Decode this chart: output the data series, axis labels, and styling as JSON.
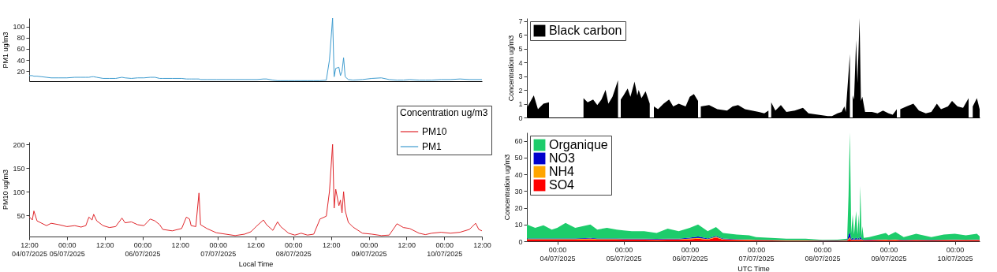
{
  "chart_data": [
    {
      "type": "line",
      "ylabel": "PM1 ug/m3",
      "xlim": [
        "2025-07-04T12:00",
        "2025-07-10T12:00"
      ],
      "ylim": [
        2,
        115
      ],
      "yticks": [
        20,
        40,
        60,
        80,
        100
      ],
      "tick_labels": "y",
      "x": [
        "2025-07-04T12:00",
        "2025-07-04T13:00",
        "2025-07-04T13:30",
        "2025-07-04T14:30",
        "2025-07-04T16:00",
        "2025-07-04T17:30",
        "2025-07-04T19:00",
        "2025-07-04T21:30",
        "2025-07-05T00:00",
        "2025-07-05T02:30",
        "2025-07-05T04:30",
        "2025-07-05T06:00",
        "2025-07-05T07:00",
        "2025-07-05T08:00",
        "2025-07-05T08:30",
        "2025-07-05T09:30",
        "2025-07-05T11:30",
        "2025-07-05T13:30",
        "2025-07-05T15:30",
        "2025-07-05T17:30",
        "2025-07-05T18:30",
        "2025-07-05T20:30",
        "2025-07-05T22:30",
        "2025-07-06T00:30",
        "2025-07-06T02:30",
        "2025-07-06T04:00",
        "2025-07-06T05:30",
        "2025-07-06T06:30",
        "2025-07-06T09:30",
        "2025-07-06T12:30",
        "2025-07-06T14:00",
        "2025-07-06T15:00",
        "2025-07-06T15:30",
        "2025-07-06T17:00",
        "2025-07-06T18:00",
        "2025-07-06T18:30",
        "2025-07-06T20:30",
        "2025-07-06T23:30",
        "2025-07-07T02:30",
        "2025-07-07T05:30",
        "2025-07-07T08:30",
        "2025-07-07T10:30",
        "2025-07-07T12:30",
        "2025-07-07T14:30",
        "2025-07-07T15:30",
        "2025-07-07T17:30",
        "2025-07-07T19:00",
        "2025-07-07T20:00",
        "2025-07-07T22:30",
        "2025-07-08T00:30",
        "2025-07-08T02:30",
        "2025-07-08T04:30",
        "2025-07-08T06:30",
        "2025-07-08T08:30",
        "2025-07-08T10:30",
        "2025-07-08T11:30",
        "2025-07-08T12:30",
        "2025-07-08T13:00",
        "2025-07-08T13:30",
        "2025-07-08T14:30",
        "2025-07-08T15:00",
        "2025-07-08T15:30",
        "2025-07-08T16:00",
        "2025-07-08T16:30",
        "2025-07-08T17:30",
        "2025-07-08T19:00",
        "2025-07-08T22:00",
        "2025-07-09T01:00",
        "2025-07-09T04:00",
        "2025-07-09T06:30",
        "2025-07-09T09:00",
        "2025-07-09T11:00",
        "2025-07-09T13:00",
        "2025-07-09T16:00",
        "2025-07-09T18:00",
        "2025-07-09T20:00",
        "2025-07-09T23:00",
        "2025-07-10T02:00",
        "2025-07-10T05:00",
        "2025-07-10T08:00",
        "2025-07-10T10:00",
        "2025-07-10T11:00",
        "2025-07-10T12:00"
      ],
      "series": [
        {
          "name": "PM1",
          "color": "#3f9ccf",
          "values": [
            12,
            12,
            11,
            11,
            10,
            9,
            8,
            8,
            8,
            9,
            9,
            9,
            9,
            10,
            10,
            9,
            7,
            7,
            7,
            9,
            8,
            7,
            8,
            8,
            9,
            9,
            7,
            7,
            7,
            7,
            6,
            6,
            6,
            6,
            6,
            5,
            5,
            5,
            5,
            5,
            5,
            5,
            5,
            6,
            6,
            4,
            3,
            3,
            3,
            3,
            3,
            3,
            3,
            3,
            4,
            40,
            115,
            10,
            25,
            27,
            12,
            20,
            44,
            10,
            5,
            4,
            5,
            7,
            8,
            5,
            4,
            4,
            5,
            4,
            4,
            4,
            5,
            5,
            6,
            5,
            5,
            5,
            5
          ]
        }
      ]
    },
    {
      "type": "line",
      "ylabel": "PM10 ug/m3",
      "xlabel": "Local Time",
      "legend_title": "Concentration ug/m3",
      "legend": "top right",
      "xlim": [
        "2025-07-04T12:00",
        "2025-07-10T12:00"
      ],
      "ylim": [
        5,
        205
      ],
      "yticks": [
        50,
        100,
        150,
        200
      ],
      "xticks": [
        {
          "value": "2025-07-04T12:00",
          "label": "12:00\n04/07/2025"
        },
        {
          "value": "2025-07-05T00:00",
          "label": "00:00\n05/07/2025"
        },
        {
          "value": "2025-07-05T12:00",
          "label": "12:00"
        },
        {
          "value": "2025-07-06T00:00",
          "label": "00:00\n06/07/2025"
        },
        {
          "value": "2025-07-06T12:00",
          "label": "12:00"
        },
        {
          "value": "2025-07-07T00:00",
          "label": "00:00\n07/07/2025"
        },
        {
          "value": "2025-07-07T12:00",
          "label": "12:00"
        },
        {
          "value": "2025-07-08T00:00",
          "label": "00:00\n08/07/2025"
        },
        {
          "value": "2025-07-08T12:00",
          "label": "12:00"
        },
        {
          "value": "2025-07-09T00:00",
          "label": "00:00\n09/07/2025"
        },
        {
          "value": "2025-07-09T12:00",
          "label": "12:00"
        },
        {
          "value": "2025-07-10T00:00",
          "label": "00:00\n10/07/2025"
        },
        {
          "value": "2025-07-10T12:00",
          "label": "12:00"
        }
      ],
      "x": [
        "2025-07-04T12:00",
        "2025-07-04T13:00",
        "2025-07-04T13:30",
        "2025-07-04T14:30",
        "2025-07-04T16:00",
        "2025-07-04T17:30",
        "2025-07-04T19:00",
        "2025-07-04T21:30",
        "2025-07-05T00:00",
        "2025-07-05T02:30",
        "2025-07-05T04:30",
        "2025-07-05T06:00",
        "2025-07-05T07:00",
        "2025-07-05T08:00",
        "2025-07-05T08:30",
        "2025-07-05T09:30",
        "2025-07-05T11:30",
        "2025-07-05T13:30",
        "2025-07-05T15:30",
        "2025-07-05T17:30",
        "2025-07-05T18:30",
        "2025-07-05T20:30",
        "2025-07-05T22:30",
        "2025-07-06T00:30",
        "2025-07-06T02:30",
        "2025-07-06T04:00",
        "2025-07-06T05:30",
        "2025-07-06T06:30",
        "2025-07-06T09:30",
        "2025-07-06T12:30",
        "2025-07-06T14:00",
        "2025-07-06T15:00",
        "2025-07-06T15:30",
        "2025-07-06T17:00",
        "2025-07-06T18:00",
        "2025-07-06T18:30",
        "2025-07-06T20:30",
        "2025-07-06T23:30",
        "2025-07-07T02:30",
        "2025-07-07T05:30",
        "2025-07-07T08:30",
        "2025-07-07T10:30",
        "2025-07-07T12:30",
        "2025-07-07T14:30",
        "2025-07-07T15:30",
        "2025-07-07T17:30",
        "2025-07-07T19:00",
        "2025-07-07T20:00",
        "2025-07-07T22:30",
        "2025-07-08T00:30",
        "2025-07-08T02:30",
        "2025-07-08T04:30",
        "2025-07-08T06:30",
        "2025-07-08T08:30",
        "2025-07-08T10:30",
        "2025-07-08T11:30",
        "2025-07-08T12:30",
        "2025-07-08T13:00",
        "2025-07-08T13:30",
        "2025-07-08T14:30",
        "2025-07-08T15:00",
        "2025-07-08T15:30",
        "2025-07-08T16:00",
        "2025-07-08T16:30",
        "2025-07-08T17:30",
        "2025-07-08T19:00",
        "2025-07-08T22:00",
        "2025-07-09T01:00",
        "2025-07-09T04:00",
        "2025-07-09T06:30",
        "2025-07-09T09:00",
        "2025-07-09T11:00",
        "2025-07-09T13:00",
        "2025-07-09T16:00",
        "2025-07-09T18:00",
        "2025-07-09T20:00",
        "2025-07-09T23:00",
        "2025-07-10T02:00",
        "2025-07-10T05:00",
        "2025-07-10T08:00",
        "2025-07-10T10:00",
        "2025-07-10T11:00",
        "2025-07-10T12:00"
      ],
      "series": [
        {
          "name": "PM10",
          "color": "#e0262b",
          "values": [
            47,
            40,
            59,
            38,
            33,
            28,
            33,
            30,
            26,
            28,
            25,
            28,
            46,
            40,
            52,
            38,
            28,
            24,
            26,
            44,
            34,
            36,
            30,
            28,
            42,
            38,
            30,
            20,
            17,
            22,
            46,
            42,
            28,
            26,
            97,
            30,
            22,
            13,
            10,
            7,
            10,
            15,
            28,
            40,
            30,
            18,
            36,
            26,
            12,
            8,
            12,
            8,
            10,
            42,
            48,
            100,
            200,
            65,
            105,
            70,
            82,
            55,
            100,
            60,
            35,
            25,
            12,
            10,
            7,
            8,
            32,
            24,
            22,
            12,
            9,
            12,
            14,
            12,
            14,
            20,
            33,
            20,
            17
          ]
        }
      ]
    },
    {
      "type": "area",
      "ylabel": "Concentration ug/m3",
      "legend": "top left",
      "xlim": [
        "2025-07-03T13:00",
        "2025-07-10T09:00"
      ],
      "ylim": [
        0,
        7.2
      ],
      "yticks": [
        0,
        1,
        2,
        3,
        4,
        5,
        6,
        7
      ],
      "tick_labels": "y",
      "x": [
        "2025-07-03T13:00",
        "2025-07-03T15:30",
        "2025-07-03T17:00",
        "2025-07-03T19:00",
        "2025-07-03T21:00",
        "2025-07-03T22:00",
        "2025-07-04T09:30",
        "2025-07-04T11:00",
        "2025-07-04T13:00",
        "2025-07-04T14:30",
        "2025-07-04T16:00",
        "2025-07-04T17:30",
        "2025-07-04T18:30",
        "2025-07-04T20:00",
        "2025-07-04T22:00",
        "2025-07-04T22:30",
        "2025-07-04T23:00",
        "2025-07-05T00:00",
        "2025-07-05T01:30",
        "2025-07-05T02:30",
        "2025-07-05T04:00",
        "2025-07-05T05:00",
        "2025-07-05T05:30",
        "2025-07-05T06:30",
        "2025-07-05T08:00",
        "2025-07-05T09:30",
        "2025-07-05T10:30",
        "2025-07-05T11:00",
        "2025-07-05T12:30",
        "2025-07-05T14:30",
        "2025-07-05T16:30",
        "2025-07-05T18:00",
        "2025-07-05T20:00",
        "2025-07-05T22:30",
        "2025-07-06T00:00",
        "2025-07-06T01:30",
        "2025-07-06T03:00",
        "2025-07-06T03:30",
        "2025-07-06T04:00",
        "2025-07-06T07:00",
        "2025-07-06T10:00",
        "2025-07-06T13:30",
        "2025-07-06T15:30",
        "2025-07-06T17:30",
        "2025-07-06T20:00",
        "2025-07-06T22:30",
        "2025-07-07T01:00",
        "2025-07-07T03:00",
        "2025-07-07T04:30",
        "2025-07-07T05:00",
        "2025-07-07T05:30",
        "2025-07-07T07:00",
        "2025-07-07T09:00",
        "2025-07-07T11:00",
        "2025-07-07T14:00",
        "2025-07-07T17:00",
        "2025-07-07T19:00",
        "2025-07-07T22:30",
        "2025-07-08T02:00",
        "2025-07-08T03:30",
        "2025-07-08T05:30",
        "2025-07-08T07:00",
        "2025-07-08T08:00",
        "2025-07-08T08:30",
        "2025-07-08T10:00",
        "2025-07-08T10:30",
        "2025-07-08T11:00",
        "2025-07-08T11:30",
        "2025-07-08T12:15",
        "2025-07-08T12:45",
        "2025-07-08T13:30",
        "2025-07-08T14:00",
        "2025-07-08T14:30",
        "2025-07-08T15:30",
        "2025-07-08T18:00",
        "2025-07-08T20:00",
        "2025-07-08T22:00",
        "2025-07-09T00:00",
        "2025-07-09T01:30",
        "2025-07-09T03:00",
        "2025-07-09T03:30",
        "2025-07-09T04:15",
        "2025-07-09T06:30",
        "2025-07-09T09:00",
        "2025-07-09T11:00",
        "2025-07-09T13:30",
        "2025-07-09T15:30",
        "2025-07-09T17:30",
        "2025-07-09T19:00",
        "2025-07-09T21:30",
        "2025-07-09T23:00",
        "2025-07-10T01:00",
        "2025-07-10T03:00",
        "2025-07-10T05:00",
        "2025-07-10T06:00",
        "2025-07-10T06:30",
        "2025-07-10T08:00",
        "2025-07-10T09:00"
      ],
      "series": [
        {
          "name": "Black carbon",
          "color": "#000000",
          "values": [
            0.7,
            1.6,
            0.6,
            1.0,
            1.1,
            null,
            1.4,
            1.1,
            1.3,
            0.9,
            1.3,
            2.0,
            1.0,
            1.5,
            2.7,
            null,
            1.3,
            1.6,
            2.1,
            1.5,
            2.6,
            1.6,
            2.0,
            1.4,
            1.9,
            1.0,
            null,
            0.8,
            0.6,
            1.0,
            1.3,
            0.8,
            1.0,
            0.8,
            1.5,
            1.7,
            1.2,
            null,
            0.8,
            0.9,
            0.6,
            0.5,
            0.8,
            0.9,
            0.6,
            0.5,
            0.4,
            0.3,
            0.5,
            null,
            1.1,
            0.5,
            0.9,
            0.4,
            0.5,
            0.7,
            0.3,
            0.2,
            0.1,
            0.1,
            0.3,
            0.4,
            0.8,
            0.4,
            4.6,
            null,
            1.6,
            1.3,
            5.6,
            2.5,
            7.2,
            1.2,
            1.5,
            0.4,
            0.4,
            0.3,
            0.5,
            0.3,
            0.2,
            0.6,
            null,
            0.6,
            0.8,
            1.0,
            0.5,
            0.3,
            0.4,
            1.0,
            0.6,
            0.8,
            1.2,
            0.8,
            0.7,
            1.4,
            null,
            0.8,
            1.4,
            0.6
          ]
        }
      ]
    },
    {
      "type": "area",
      "stacked": true,
      "ylabel": "Concentration ug/m3",
      "xlabel": "UTC Time",
      "legend": "top left",
      "xlim": [
        "2025-07-03T13:00",
        "2025-07-10T09:00"
      ],
      "ylim": [
        0,
        65
      ],
      "yticks": [
        0,
        10,
        20,
        30,
        40,
        50,
        60
      ],
      "xticks": [
        {
          "value": "2025-07-04T00:00",
          "label": "00:00\n04/07/2025"
        },
        {
          "value": "2025-07-05T00:00",
          "label": "00:00\n05/07/2025"
        },
        {
          "value": "2025-07-06T00:00",
          "label": "00:00\n06/07/2025"
        },
        {
          "value": "2025-07-07T00:00",
          "label": "00:00\n07/07/2025"
        },
        {
          "value": "2025-07-08T00:00",
          "label": "00:00\n08/07/2025"
        },
        {
          "value": "2025-07-09T00:00",
          "label": "00:00\n09/07/2025"
        },
        {
          "value": "2025-07-10T00:00",
          "label": "00:00\n10/07/2025"
        }
      ],
      "x": [
        "2025-07-03T13:00",
        "2025-07-03T16:00",
        "2025-07-03T19:00",
        "2025-07-03T22:00",
        "2025-07-04T00:00",
        "2025-07-04T03:00",
        "2025-07-04T06:30",
        "2025-07-04T12:00",
        "2025-07-04T14:30",
        "2025-07-04T18:00",
        "2025-07-04T21:30",
        "2025-07-05T00:00",
        "2025-07-05T03:00",
        "2025-07-05T07:30",
        "2025-07-05T12:00",
        "2025-07-05T16:00",
        "2025-07-05T20:00",
        "2025-07-06T00:00",
        "2025-07-06T03:00",
        "2025-07-06T06:30",
        "2025-07-06T09:30",
        "2025-07-06T12:00",
        "2025-07-06T17:00",
        "2025-07-06T21:30",
        "2025-07-07T00:00",
        "2025-07-07T05:30",
        "2025-07-07T11:00",
        "2025-07-07T18:00",
        "2025-07-08T00:00",
        "2025-07-08T05:30",
        "2025-07-08T09:00",
        "2025-07-08T09:30",
        "2025-07-08T10:00",
        "2025-07-08T10:30",
        "2025-07-08T11:00",
        "2025-07-08T11:30",
        "2025-07-08T12:15",
        "2025-07-08T12:45",
        "2025-07-08T13:15",
        "2025-07-08T13:30",
        "2025-07-08T13:45",
        "2025-07-08T14:15",
        "2025-07-08T14:30",
        "2025-07-08T15:00",
        "2025-07-08T17:00",
        "2025-07-08T23:00",
        "2025-07-09T00:00",
        "2025-07-09T02:30",
        "2025-07-09T05:30",
        "2025-07-09T10:00",
        "2025-07-09T15:30",
        "2025-07-09T20:00",
        "2025-07-10T00:00",
        "2025-07-10T04:00",
        "2025-07-10T08:00",
        "2025-07-10T09:00"
      ],
      "series": [
        {
          "name": "SO4",
          "color": "#ff0000",
          "values": [
            1.0,
            1.0,
            1.0,
            1.0,
            1.0,
            1.0,
            1.0,
            1.2,
            1.0,
            1.0,
            1.0,
            0.9,
            0.9,
            0.9,
            0.8,
            0.9,
            0.9,
            1.2,
            1.5,
            1.0,
            2.2,
            1.0,
            0.8,
            0.7,
            0.6,
            0.5,
            0.4,
            0.4,
            0.3,
            0.3,
            0.4,
            1.0,
            1.5,
            0.5,
            0.8,
            0.5,
            0.8,
            0.5,
            0.8,
            0.5,
            1.0,
            0.5,
            0.6,
            0.5,
            0.6,
            0.7,
            0.6,
            0.7,
            0.5,
            0.6,
            0.5,
            0.6,
            0.6,
            0.6,
            0.6,
            0.6
          ]
        },
        {
          "name": "NH4",
          "color": "#ffa500",
          "values": [
            0.3,
            0.3,
            0.3,
            0.3,
            0.3,
            0.3,
            0.3,
            0.4,
            0.3,
            0.3,
            0.3,
            0.3,
            0.3,
            0.3,
            0.3,
            0.3,
            0.3,
            0.4,
            0.5,
            0.3,
            0.5,
            0.3,
            0.2,
            0.2,
            0.2,
            0.1,
            0.1,
            0.1,
            0.1,
            0.1,
            0.1,
            0.5,
            1.0,
            0.2,
            0.4,
            0.2,
            0.4,
            0.2,
            0.4,
            0.2,
            0.5,
            0.2,
            0.3,
            0.1,
            0.1,
            0.2,
            0.2,
            0.2,
            0.1,
            0.2,
            0.1,
            0.2,
            0.2,
            0.2,
            0.2,
            0.2
          ]
        },
        {
          "name": "NO3",
          "color": "#0000cc",
          "values": [
            0.4,
            0.4,
            0.4,
            0.4,
            0.4,
            0.4,
            0.3,
            0.4,
            0.3,
            0.3,
            0.3,
            0.3,
            0.3,
            0.3,
            0.3,
            0.3,
            0.3,
            0.5,
            0.8,
            0.3,
            0.5,
            0.3,
            0.2,
            0.2,
            0.2,
            0.1,
            0.1,
            0.1,
            0.1,
            0.1,
            0.2,
            2.0,
            3.0,
            0.5,
            1.0,
            0.3,
            1.0,
            0.3,
            1.0,
            0.3,
            2.0,
            0.3,
            0.5,
            0.2,
            0.2,
            0.2,
            0.2,
            0.2,
            0.2,
            0.2,
            0.2,
            0.2,
            0.3,
            0.2,
            0.3,
            0.2
          ]
        },
        {
          "name": "Organique",
          "color": "#1dcc6b",
          "values": [
            8.3,
            6.3,
            7.8,
            5.3,
            6.3,
            9.3,
            6.4,
            8.0,
            5.4,
            6.4,
            5.4,
            5.0,
            4.5,
            4.5,
            3.6,
            6.0,
            4.5,
            5.9,
            7.2,
            4.4,
            5.3,
            3.4,
            2.8,
            2.4,
            1.5,
            1.3,
            0.9,
            0.9,
            0.3,
            0.5,
            0.8,
            23.5,
            59.5,
            3.8,
            13.8,
            3.0,
            15.8,
            3.0,
            13.8,
            3.0,
            29.5,
            2.0,
            7.6,
            1.2,
            1.6,
            3.9,
            2.5,
            4.4,
            1.7,
            3.5,
            1.7,
            3.0,
            3.4,
            2.5,
            3.4,
            2.0
          ]
        }
      ]
    }
  ]
}
